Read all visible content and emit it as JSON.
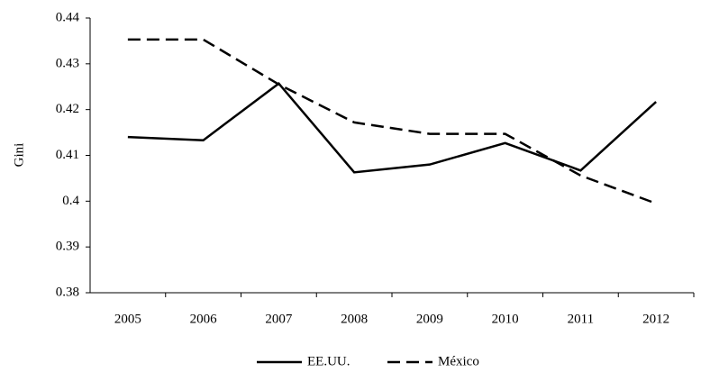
{
  "chart_data": {
    "type": "line",
    "y_label": "Gini",
    "categories": [
      "2005",
      "2006",
      "2007",
      "2008",
      "2009",
      "2010",
      "2011",
      "2012"
    ],
    "series": [
      {
        "name": "EE.UU.",
        "color": "#000000",
        "line_style": "solid",
        "values": [
          0.414,
          0.4133,
          0.4257,
          0.4063,
          0.408,
          0.4127,
          0.4067,
          0.4217
        ]
      },
      {
        "name": "México",
        "color": "#000000",
        "line_style": "dashed",
        "values": [
          0.4353,
          0.4353,
          0.4255,
          0.4172,
          0.4147,
          0.4147,
          0.4056,
          0.3995
        ]
      }
    ],
    "ylim": [
      0.38,
      0.44
    ],
    "yticks": [
      0.38,
      0.39,
      0.4,
      0.41,
      0.42,
      0.43,
      0.44
    ],
    "grid": false,
    "legend": "bottom"
  }
}
